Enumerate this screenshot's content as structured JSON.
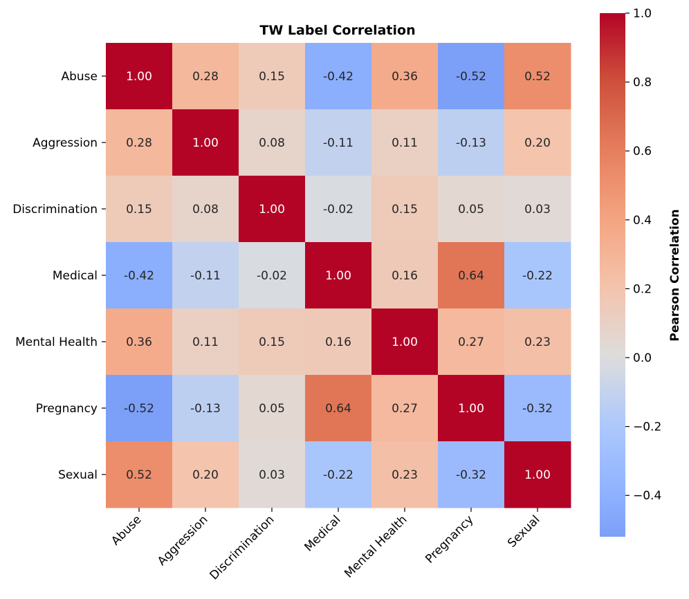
{
  "chart_data": {
    "type": "heatmap",
    "title": "TW Label Correlation",
    "row_labels": [
      "Abuse",
      "Aggression",
      "Discrimination",
      "Medical",
      "Mental Health",
      "Pregnancy",
      "Sexual"
    ],
    "col_labels": [
      "Abuse",
      "Aggression",
      "Discrimination",
      "Medical",
      "Mental Health",
      "Pregnancy",
      "Sexual"
    ],
    "values": [
      [
        1.0,
        0.28,
        0.15,
        -0.42,
        0.36,
        -0.52,
        0.52
      ],
      [
        0.28,
        1.0,
        0.08,
        -0.11,
        0.11,
        -0.13,
        0.2
      ],
      [
        0.15,
        0.08,
        1.0,
        -0.02,
        0.15,
        0.05,
        0.03
      ],
      [
        -0.42,
        -0.11,
        -0.02,
        1.0,
        0.16,
        0.64,
        -0.22
      ],
      [
        0.36,
        0.11,
        0.15,
        0.16,
        1.0,
        0.27,
        0.23
      ],
      [
        -0.52,
        -0.13,
        0.05,
        0.64,
        0.27,
        1.0,
        -0.32
      ],
      [
        0.52,
        0.2,
        0.03,
        -0.22,
        0.23,
        -0.32,
        1.0
      ]
    ],
    "value_format": "2 decimals",
    "colormap": "coolwarm",
    "vmin": -0.52,
    "vmax": 1.0,
    "colorbar": {
      "label": "Pearson Correlation",
      "ticks": [
        1.0,
        0.8,
        0.6,
        0.4,
        0.2,
        0.0,
        -0.2,
        -0.4
      ],
      "tick_labels": [
        "1.0",
        "0.8",
        "0.6",
        "0.4",
        "0.2",
        "0.0",
        "−0.2",
        "−0.4"
      ]
    }
  }
}
